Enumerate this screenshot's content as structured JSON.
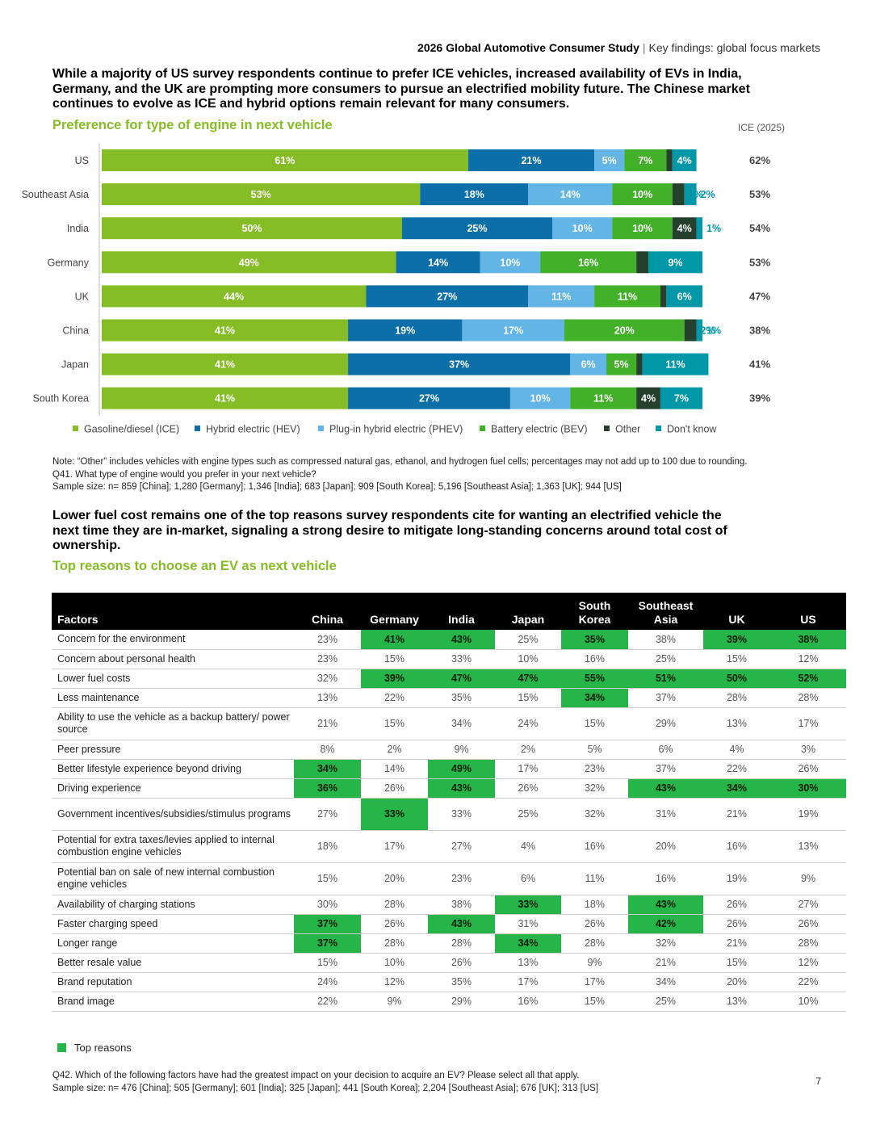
{
  "header": {
    "study_title": "2026 Global Automotive Consumer Study",
    "separator": "|",
    "section": "Key findings: global focus markets"
  },
  "headline1": "While a majority of US survey respondents continue to prefer ICE vehicles, increased availability of EVs in India, Germany, and the UK are prompting more consumers to pursue an electrified mobility future. The Chinese market continues to evolve as ICE and hybrid options remain relevant for many consumers.",
  "chart_data": {
    "type": "bar",
    "orientation": "horizontal-stacked",
    "title": "Preference for type of engine in next vehicle",
    "side_column_label": "ICE (2025)",
    "categories": [
      "US",
      "Southeast Asia",
      "India",
      "Germany",
      "UK",
      "China",
      "Japan",
      "South Korea"
    ],
    "series": [
      {
        "name": "Gasoline/diesel (ICE)",
        "color": "#86bc25",
        "values": [
          61,
          53,
          50,
          49,
          44,
          41,
          41,
          41
        ]
      },
      {
        "name": "Hybrid electric (HEV)",
        "color": "#0d6fa8",
        "values": [
          21,
          18,
          25,
          14,
          27,
          19,
          37,
          27
        ]
      },
      {
        "name": "Plug-in hybrid electric (PHEV)",
        "color": "#62b5e5",
        "values": [
          5,
          14,
          10,
          10,
          11,
          17,
          6,
          10
        ]
      },
      {
        "name": "Battery electric (BEV)",
        "color": "#43b02a",
        "values": [
          7,
          10,
          10,
          16,
          11,
          20,
          5,
          11
        ]
      },
      {
        "name": "Other",
        "color": "#26402e",
        "values": [
          1,
          2,
          4,
          2,
          1,
          2,
          1,
          4
        ]
      },
      {
        "name": "Don't know",
        "color": "#0097a9",
        "values": [
          4,
          2,
          1,
          9,
          6,
          1,
          11,
          7
        ]
      }
    ],
    "ice_2025": [
      "62%",
      "53%",
      "54%",
      "53%",
      "47%",
      "38%",
      "41%",
      "39%"
    ],
    "value_suffix": "%"
  },
  "chart_note": "Note: “Other” includes vehicles with engine types such as compressed natural gas, ethanol, and hydrogen fuel cells; percentages may not add up to 100 due to rounding.",
  "chart_question": "Q41. What type of engine would you prefer in your next vehicle?",
  "chart_sample": "Sample size: n= 859 [China]; 1,280 [Germany]; 1,346 [India]; 683 [Japan]; 909 [South Korea]; 5,196 [Southeast Asia]; 1,363 [UK]; 944 [US]",
  "headline2": "Lower fuel cost remains one of the top reasons survey respondents cite for wanting an electrified vehicle the next time they are in-market, signaling a strong desire to mitigate long-standing concerns around total cost of ownership.",
  "table_title": "Top reasons to choose an EV as next vehicle",
  "table": {
    "headers": [
      "Factors",
      "China",
      "Germany",
      "India",
      "Japan",
      "South Korea",
      "Southeast Asia",
      "UK",
      "US"
    ],
    "rows": [
      {
        "factor": "Concern for the environment",
        "values": [
          "23%",
          "41%",
          "43%",
          "25%",
          "35%",
          "38%",
          "39%",
          "38%"
        ],
        "top": [
          0,
          1,
          1,
          0,
          1,
          0,
          1,
          1
        ]
      },
      {
        "factor": "Concern about personal health",
        "values": [
          "23%",
          "15%",
          "33%",
          "10%",
          "16%",
          "25%",
          "15%",
          "12%"
        ],
        "top": [
          0,
          0,
          0,
          0,
          0,
          0,
          0,
          0
        ]
      },
      {
        "factor": "Lower fuel costs",
        "values": [
          "32%",
          "39%",
          "47%",
          "47%",
          "55%",
          "51%",
          "50%",
          "52%"
        ],
        "top": [
          0,
          1,
          1,
          1,
          1,
          1,
          1,
          1
        ]
      },
      {
        "factor": "Less maintenance",
        "values": [
          "13%",
          "22%",
          "35%",
          "15%",
          "34%",
          "37%",
          "28%",
          "28%"
        ],
        "top": [
          0,
          0,
          0,
          0,
          1,
          0,
          0,
          0
        ]
      },
      {
        "factor": "Ability to use the vehicle as a backup battery/ power source",
        "values": [
          "21%",
          "15%",
          "34%",
          "24%",
          "15%",
          "29%",
          "13%",
          "17%"
        ],
        "top": [
          0,
          0,
          0,
          0,
          0,
          0,
          0,
          0
        ],
        "tall": true
      },
      {
        "factor": "Peer pressure",
        "values": [
          "8%",
          "2%",
          "9%",
          "2%",
          "5%",
          "6%",
          "4%",
          "3%"
        ],
        "top": [
          0,
          0,
          0,
          0,
          0,
          0,
          0,
          0
        ]
      },
      {
        "factor": "Better lifestyle experience beyond driving",
        "values": [
          "34%",
          "14%",
          "49%",
          "17%",
          "23%",
          "37%",
          "22%",
          "26%"
        ],
        "top": [
          1,
          0,
          1,
          0,
          0,
          0,
          0,
          0
        ]
      },
      {
        "factor": "Driving experience",
        "values": [
          "36%",
          "26%",
          "43%",
          "26%",
          "32%",
          "43%",
          "34%",
          "30%"
        ],
        "top": [
          1,
          0,
          1,
          0,
          0,
          1,
          1,
          1
        ]
      },
      {
        "factor": "Government incentives/subsidies/stimulus programs",
        "values": [
          "27%",
          "33%",
          "33%",
          "25%",
          "32%",
          "31%",
          "21%",
          "19%"
        ],
        "top": [
          0,
          1,
          0,
          0,
          0,
          0,
          0,
          0
        ],
        "tall": true
      },
      {
        "factor": "Potential for extra taxes/levies applied to internal combustion engine vehicles",
        "values": [
          "18%",
          "17%",
          "27%",
          "4%",
          "16%",
          "20%",
          "16%",
          "13%"
        ],
        "top": [
          0,
          0,
          0,
          0,
          0,
          0,
          0,
          0
        ],
        "tall": true
      },
      {
        "factor": "Potential ban on sale of new internal combustion engine vehicles",
        "values": [
          "15%",
          "20%",
          "23%",
          "6%",
          "11%",
          "16%",
          "19%",
          "9%"
        ],
        "top": [
          0,
          0,
          0,
          0,
          0,
          0,
          0,
          0
        ],
        "tall": true
      },
      {
        "factor": "Availability of charging stations",
        "values": [
          "30%",
          "28%",
          "38%",
          "33%",
          "18%",
          "43%",
          "26%",
          "27%"
        ],
        "top": [
          0,
          0,
          0,
          1,
          0,
          1,
          0,
          0
        ]
      },
      {
        "factor": "Faster charging speed",
        "values": [
          "37%",
          "26%",
          "43%",
          "31%",
          "26%",
          "42%",
          "26%",
          "26%"
        ],
        "top": [
          1,
          0,
          1,
          0,
          0,
          1,
          0,
          0
        ]
      },
      {
        "factor": "Longer range",
        "values": [
          "37%",
          "28%",
          "28%",
          "34%",
          "28%",
          "32%",
          "21%",
          "28%"
        ],
        "top": [
          1,
          0,
          0,
          1,
          0,
          0,
          0,
          0
        ]
      },
      {
        "factor": "Better resale value",
        "values": [
          "15%",
          "10%",
          "26%",
          "13%",
          "9%",
          "21%",
          "15%",
          "12%"
        ],
        "top": [
          0,
          0,
          0,
          0,
          0,
          0,
          0,
          0
        ]
      },
      {
        "factor": "Brand reputation",
        "values": [
          "24%",
          "12%",
          "35%",
          "17%",
          "17%",
          "34%",
          "20%",
          "22%"
        ],
        "top": [
          0,
          0,
          0,
          0,
          0,
          0,
          0,
          0
        ]
      },
      {
        "factor": "Brand image",
        "values": [
          "22%",
          "9%",
          "29%",
          "16%",
          "15%",
          "25%",
          "13%",
          "10%"
        ],
        "top": [
          0,
          0,
          0,
          0,
          0,
          0,
          0,
          0
        ]
      }
    ]
  },
  "table_legend": "Top reasons",
  "table_question": "Q42. Which of the following factors have had the greatest impact on your decision to acquire an EV? Please select all that apply.",
  "table_sample": "Sample size: n= 476 [China]; 505 [Germany]; 601 [India]; 325 [Japan]; 441 [South Korea]; 2,204 [Southeast Asia]; 676 [UK]; 313 [US]",
  "page_number": "7"
}
